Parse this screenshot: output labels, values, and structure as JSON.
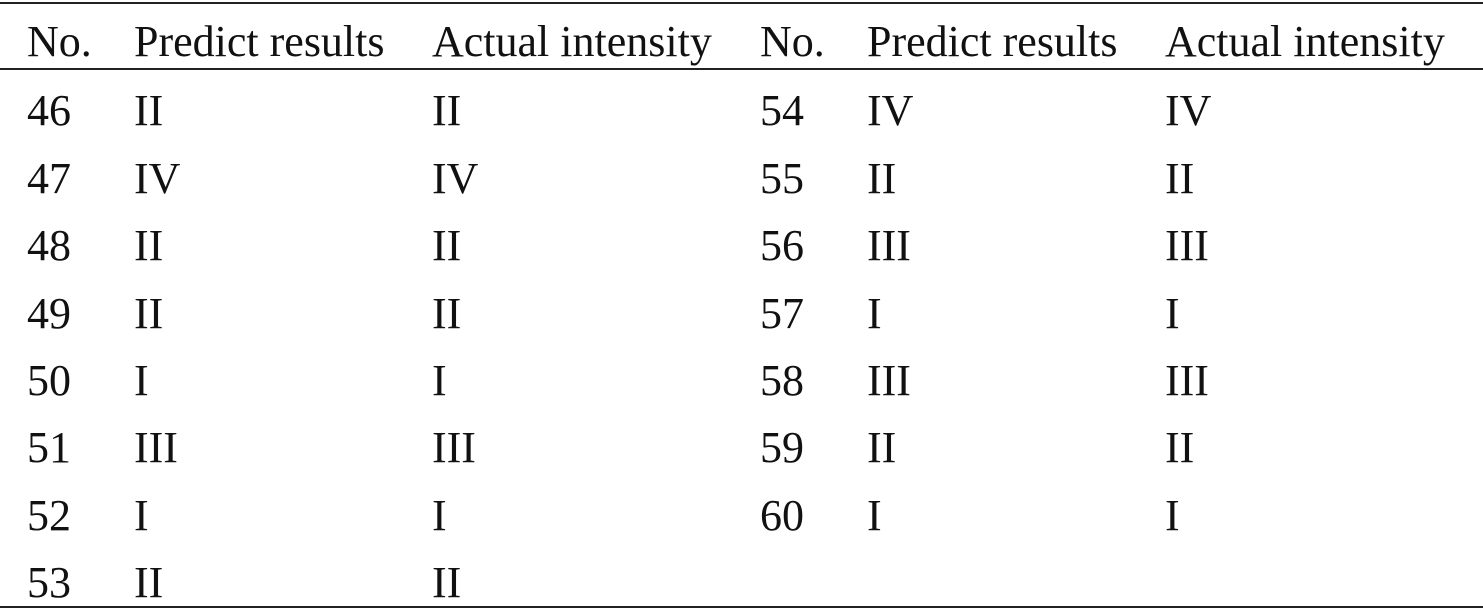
{
  "table": {
    "headers": [
      "No.",
      "Predict results",
      "Actual intensity",
      "No.",
      "Predict results",
      "Actual intensity"
    ],
    "left_rows": [
      {
        "no": "46",
        "predict": "II",
        "actual": "II"
      },
      {
        "no": "47",
        "predict": "IV",
        "actual": "IV"
      },
      {
        "no": "48",
        "predict": "II",
        "actual": "II"
      },
      {
        "no": "49",
        "predict": "II",
        "actual": "II"
      },
      {
        "no": "50",
        "predict": "I",
        "actual": "I"
      },
      {
        "no": "51",
        "predict": "III",
        "actual": "III"
      },
      {
        "no": "52",
        "predict": "I",
        "actual": "I"
      },
      {
        "no": "53",
        "predict": "II",
        "actual": "II"
      }
    ],
    "right_rows": [
      {
        "no": "54",
        "predict": "IV",
        "actual": "IV"
      },
      {
        "no": "55",
        "predict": "II",
        "actual": "II"
      },
      {
        "no": "56",
        "predict": "III",
        "actual": "III"
      },
      {
        "no": "57",
        "predict": "I",
        "actual": "I"
      },
      {
        "no": "58",
        "predict": "III",
        "actual": "III"
      },
      {
        "no": "59",
        "predict": "II",
        "actual": "II"
      },
      {
        "no": "60",
        "predict": "I",
        "actual": "I"
      }
    ]
  }
}
